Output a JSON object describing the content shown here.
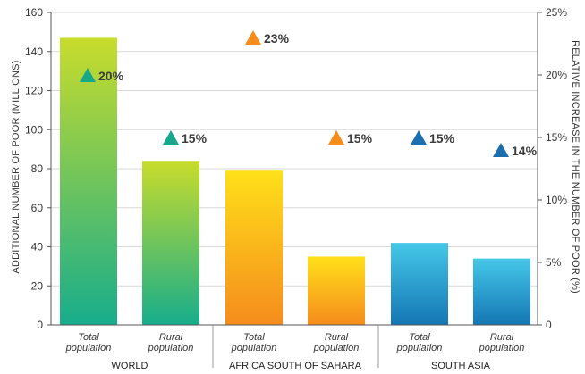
{
  "chart_data": {
    "type": "bar",
    "ylabel": "ADDITIONAL NUMBER OF POOR (MILLIONS)",
    "y2label": "RELATIVE INCREASE IN THE NUMBER OF POOR (%)",
    "ylim": [
      0,
      160
    ],
    "y_ticks": [
      "0",
      "20",
      "40",
      "60",
      "80",
      "100",
      "120",
      "140",
      "160"
    ],
    "y2lim": [
      0,
      25
    ],
    "y2_ticks": [
      "0",
      "5%",
      "10%",
      "15%",
      "20%",
      "25%"
    ],
    "grid": true,
    "categories": [
      "Total population",
      "Rural population",
      "Total population",
      "Rural population",
      "Total population",
      "Rural population"
    ],
    "groups": [
      {
        "label": "WORLD",
        "members": [
          0,
          1
        ]
      },
      {
        "label": "AFRICA SOUTH OF SAHARA",
        "members": [
          2,
          3
        ]
      },
      {
        "label": "SOUTH ASIA",
        "members": [
          4,
          5
        ]
      }
    ],
    "series": [
      {
        "axis": "left",
        "kind": "bar",
        "values": [
          147,
          84,
          79,
          35,
          42,
          34
        ]
      },
      {
        "axis": "right",
        "kind": "marker",
        "marker": "triangle",
        "values": [
          20,
          15,
          23,
          15,
          15,
          14
        ],
        "labels": [
          "20%",
          "15%",
          "23%",
          "15%",
          "15%",
          "14%"
        ]
      }
    ],
    "colors": {
      "world_bar_top": "#c8dc2c",
      "world_bar_bottom": "#17ad8c",
      "africa_bar_top": "#ffe01a",
      "africa_bar_bottom": "#f58c1c",
      "asia_bar_top": "#45c8e8",
      "asia_bar_bottom": "#1476b4",
      "world_marker": "#17a88c",
      "africa_marker": "#f58c1c",
      "asia_marker": "#1a6fb0",
      "grid": "#d9d9d9",
      "axis": "#555555"
    }
  }
}
